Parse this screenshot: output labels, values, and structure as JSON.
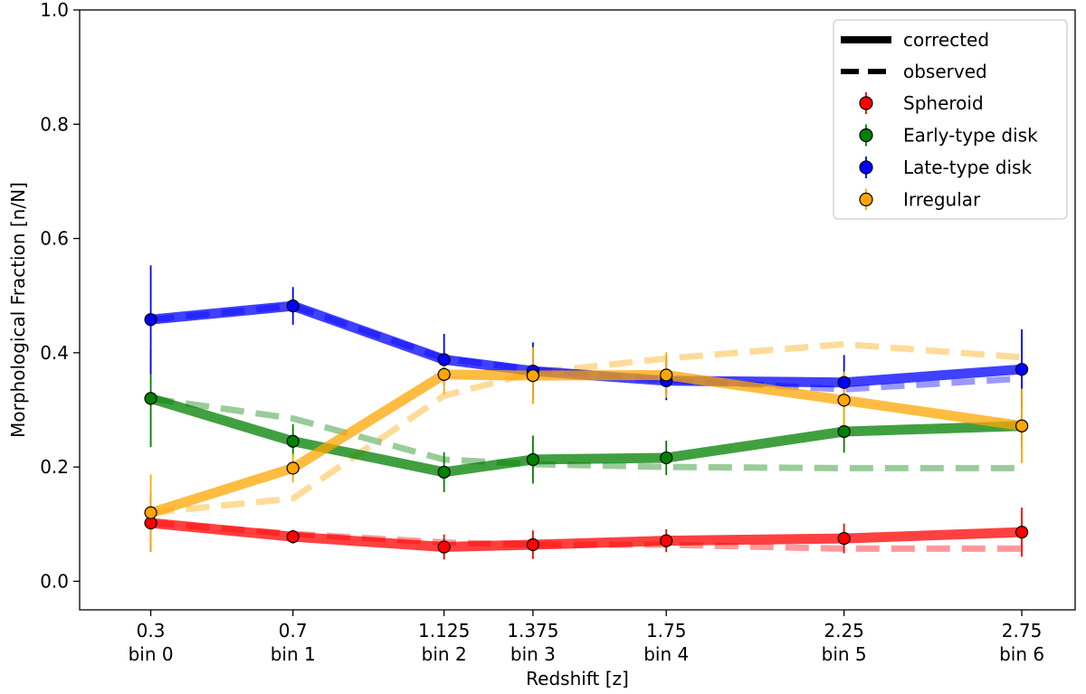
{
  "chart_data": {
    "type": "line",
    "xlabel": "Redshift [z]",
    "ylabel": "Morphological Fraction [n/N]",
    "ylim": [
      -0.05,
      1.0
    ],
    "xlim": [
      0.1,
      2.9
    ],
    "grid": false,
    "legend_position": "top-right",
    "y_ticks": [
      "0.0",
      "0.2",
      "0.4",
      "0.6",
      "0.8",
      "1.0"
    ],
    "x": [
      0.3,
      0.7,
      1.125,
      1.375,
      1.75,
      2.25,
      2.75
    ],
    "x_tick_labels": [
      "0.3",
      "0.7",
      "1.125",
      "1.375",
      "1.75",
      "2.25",
      "2.75"
    ],
    "x_tick_sublabels": [
      "bin 0",
      "bin 1",
      "bin 2",
      "bin 3",
      "bin 4",
      "bin 5",
      "bin 6"
    ],
    "legend": {
      "corrected": "corrected",
      "observed": "observed"
    },
    "series": [
      {
        "name": "Spheroid",
        "color": "#ff0000",
        "corrected": [
          0.102,
          0.078,
          0.06,
          0.064,
          0.071,
          0.075,
          0.086
        ],
        "observed": [
          0.102,
          0.083,
          0.068,
          0.064,
          0.064,
          0.057,
          0.057
        ],
        "error": [
          0.05,
          0.012,
          0.022,
          0.025,
          0.02,
          0.026,
          0.043
        ]
      },
      {
        "name": "Early-type disk",
        "color": "#008000",
        "corrected": [
          0.32,
          0.245,
          0.191,
          0.213,
          0.216,
          0.262,
          0.272
        ],
        "observed": [
          0.32,
          0.285,
          0.213,
          0.205,
          0.2,
          0.198,
          0.198
        ],
        "error": [
          0.085,
          0.03,
          0.035,
          0.042,
          0.03,
          0.037,
          0.04
        ]
      },
      {
        "name": "Late-type disk",
        "color": "#0000ff",
        "corrected": [
          0.458,
          0.482,
          0.388,
          0.368,
          0.351,
          0.348,
          0.371
        ],
        "observed": [
          0.458,
          0.482,
          0.39,
          0.37,
          0.352,
          0.336,
          0.355
        ],
        "error": [
          0.095,
          0.033,
          0.045,
          0.05,
          0.034,
          0.048,
          0.07
        ]
      },
      {
        "name": "Irregular",
        "color": "#ffa500",
        "corrected": [
          0.12,
          0.198,
          0.362,
          0.36,
          0.361,
          0.317,
          0.272
        ],
        "observed": [
          0.12,
          0.145,
          0.325,
          0.365,
          0.39,
          0.415,
          0.392
        ],
        "error": [
          0.067,
          0.025,
          0.035,
          0.05,
          0.04,
          0.05,
          0.065
        ]
      }
    ]
  }
}
